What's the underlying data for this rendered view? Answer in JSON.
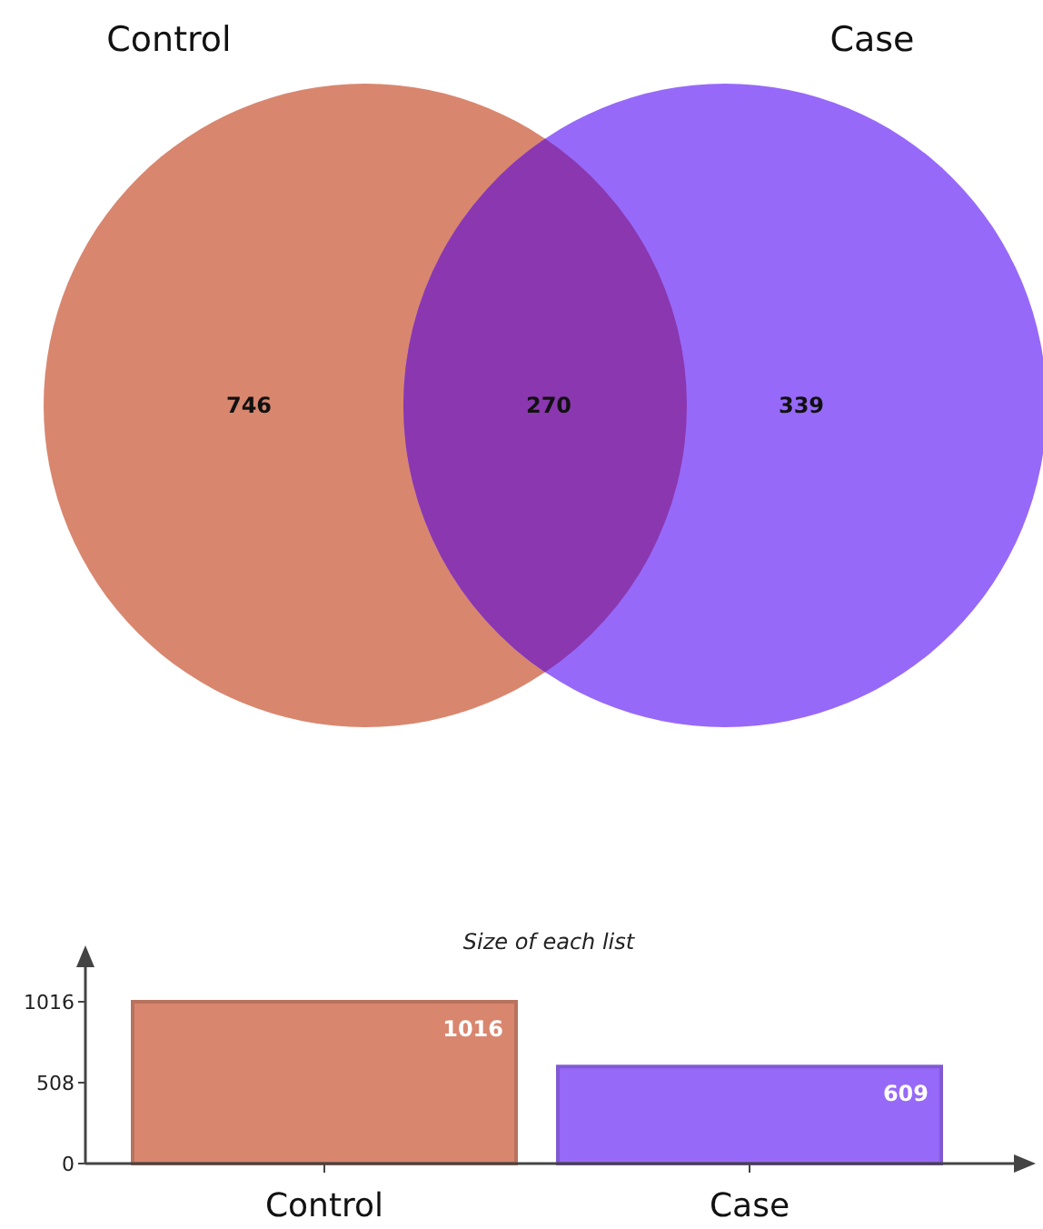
{
  "chart_data": [
    {
      "type": "other",
      "categories": [
        "Control",
        null,
        "Case"
      ],
      "values": [
        746,
        270,
        339
      ],
      "colors": [
        "#d9866f",
        "#8a37b0",
        "#9769f8"
      ],
      "data_labels": true
    },
    {
      "type": "bar",
      "title": "Size of each list",
      "categories": [
        "Control",
        "Case"
      ],
      "values": [
        1016,
        609
      ],
      "colors": [
        "#d9866f",
        "#9769f8"
      ],
      "ylim": [
        0,
        1016
      ],
      "yticks": [
        0,
        508,
        1016
      ],
      "data_labels": true
    }
  ]
}
